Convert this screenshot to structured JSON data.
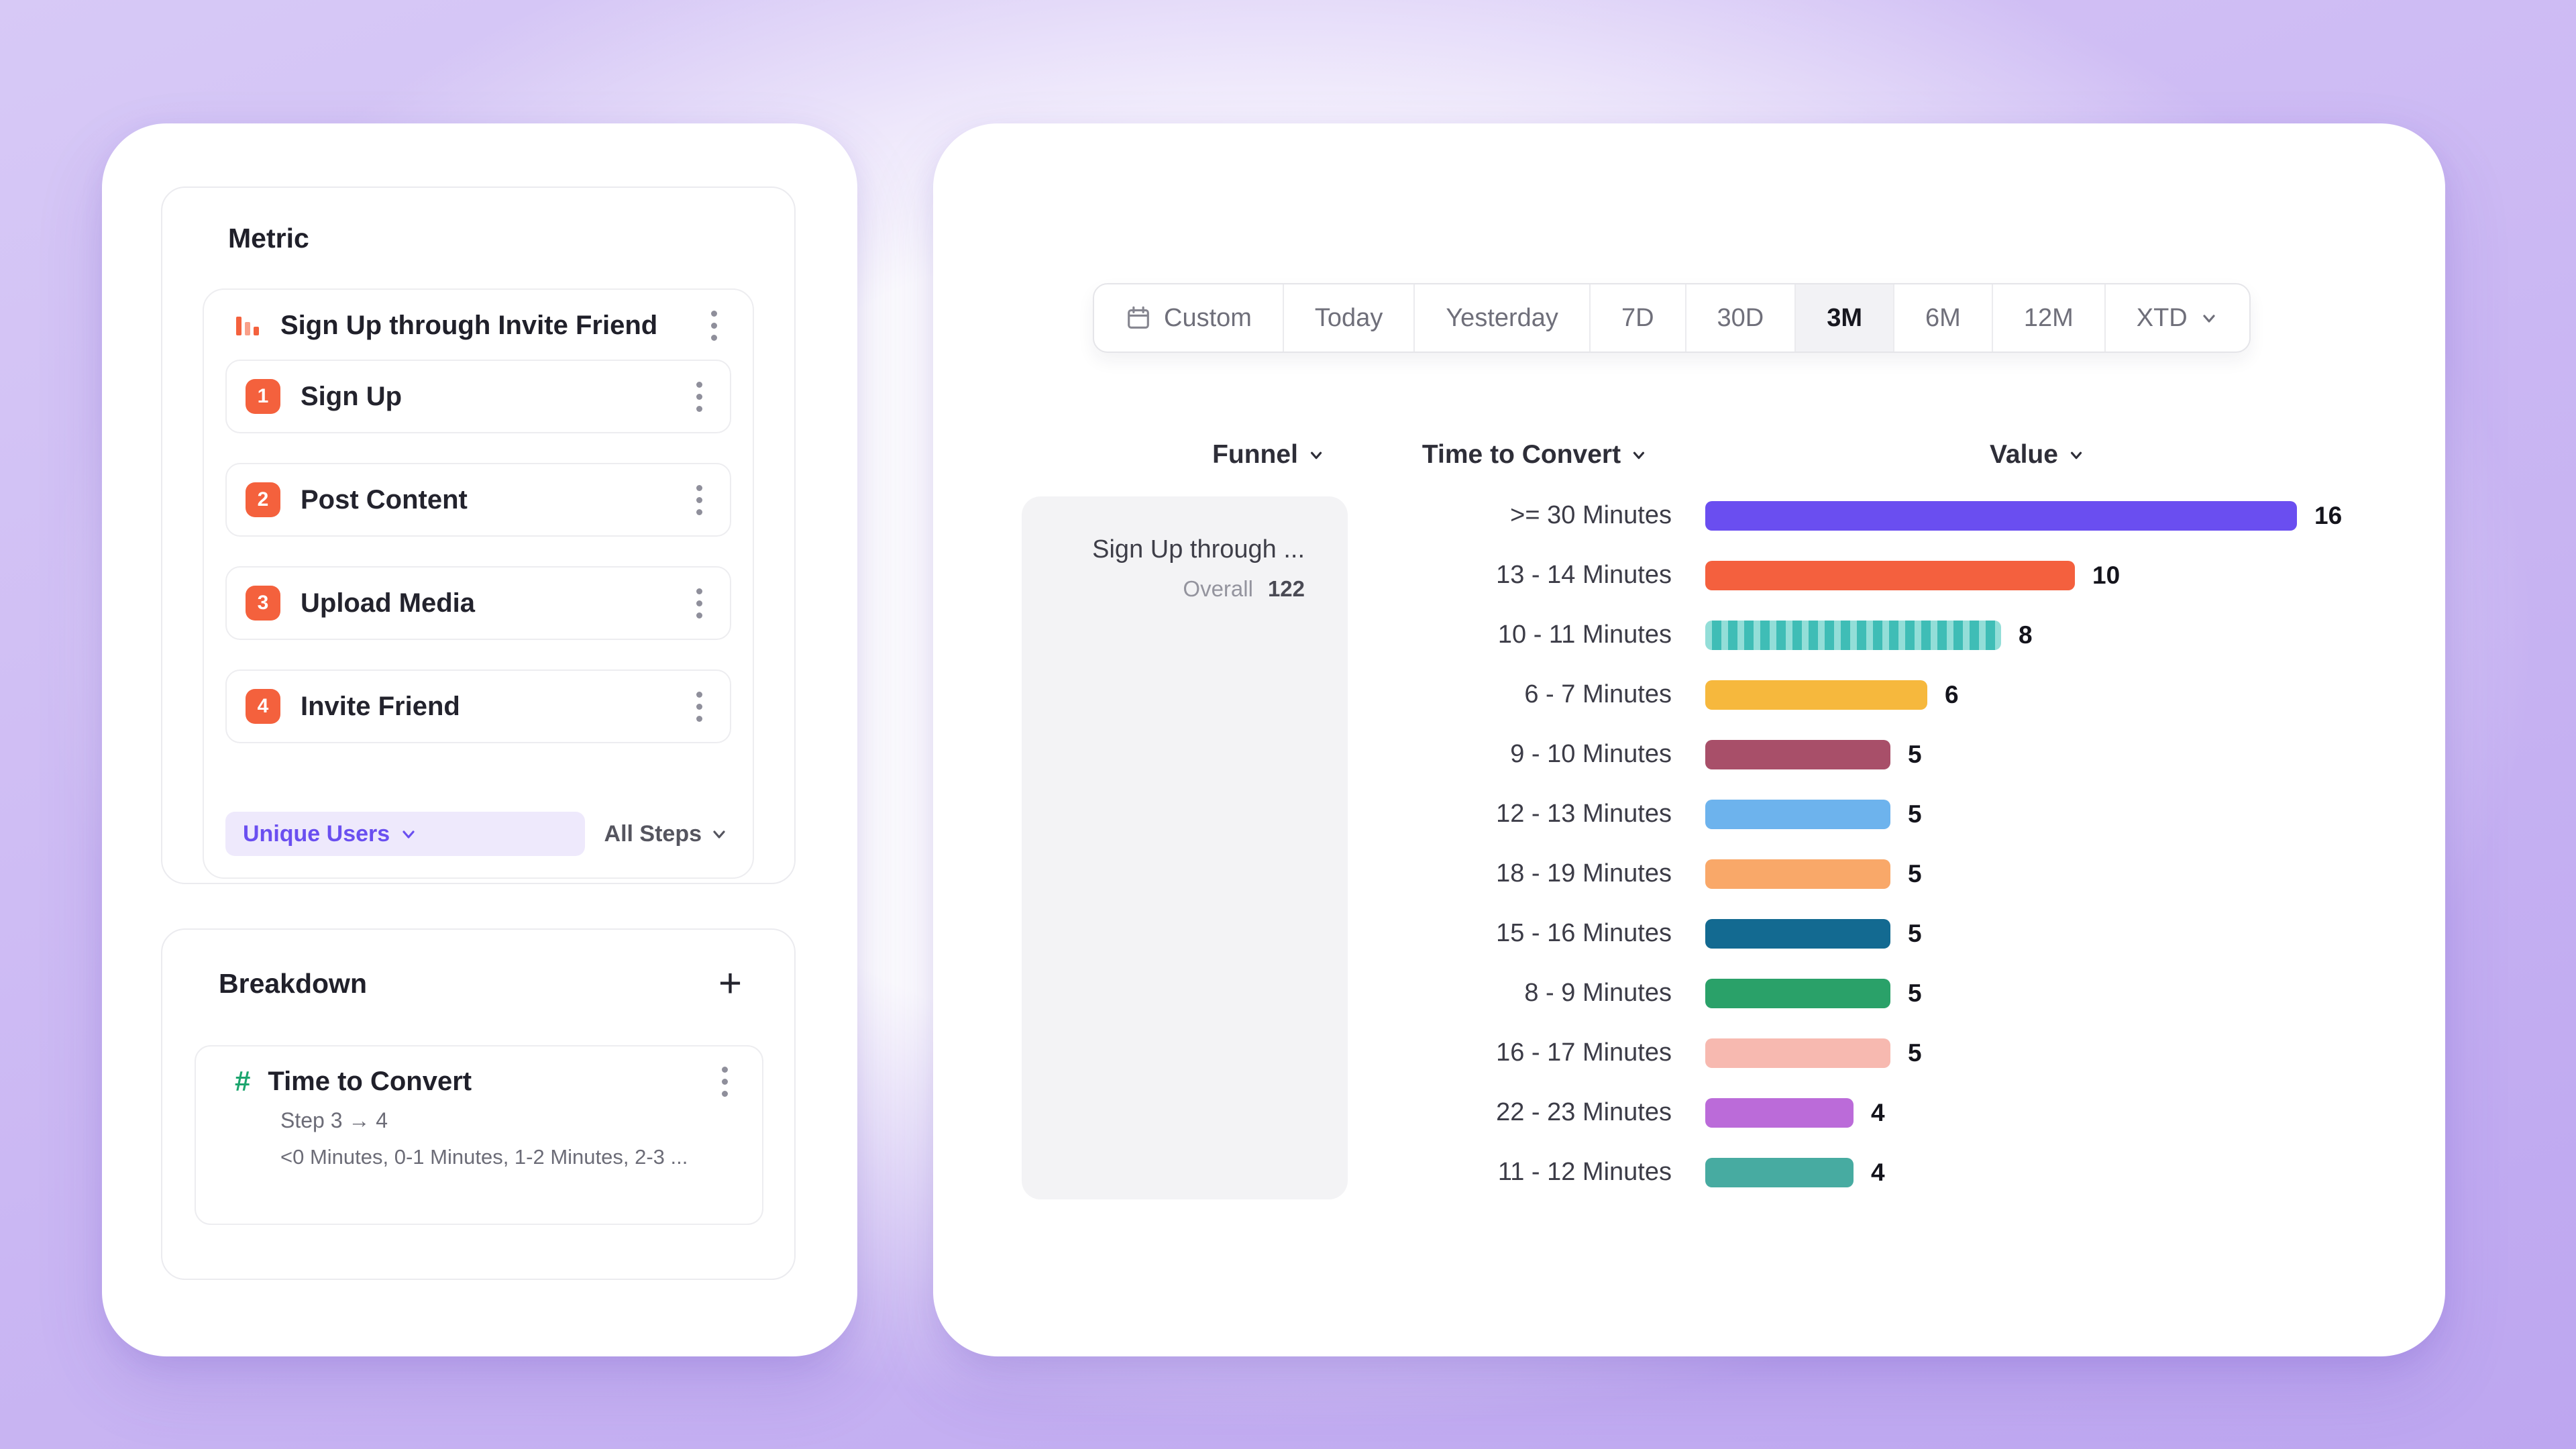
{
  "left_panel": {
    "metric_section": {
      "title": "Metric",
      "funnel_name": "Sign Up through Invite Friend",
      "steps": [
        {
          "number": "1",
          "label": "Sign Up"
        },
        {
          "number": "2",
          "label": "Post Content"
        },
        {
          "number": "3",
          "label": "Upload Media"
        },
        {
          "number": "4",
          "label": "Invite Friend"
        }
      ],
      "counting_dropdown": "Unique Users",
      "steps_dropdown": "All Steps"
    },
    "breakdown_section": {
      "title": "Breakdown",
      "add_icon": "+",
      "property_icon": "#",
      "property_name": "Time to Convert",
      "step_range": "Step 3 → 4",
      "buckets_preview": "<0 Minutes, 0-1 Minutes, 1-2 Minutes, 2-3 ..."
    }
  },
  "right_panel": {
    "date_selector": {
      "selected": "3M",
      "options": [
        {
          "label": "Custom",
          "icon": "calendar-icon",
          "selected": false
        },
        {
          "label": "Today",
          "selected": false
        },
        {
          "label": "Yesterday",
          "selected": false
        },
        {
          "label": "7D",
          "selected": false
        },
        {
          "label": "30D",
          "selected": false
        },
        {
          "label": "3M",
          "selected": true
        },
        {
          "label": "6M",
          "selected": false
        },
        {
          "label": "12M",
          "selected": false
        },
        {
          "label": "XTD",
          "icon_right": "chevron-down-icon",
          "selected": false
        }
      ]
    },
    "column_headers": [
      "Funnel",
      "Time to Convert",
      "Value"
    ],
    "funnel_summary": {
      "name": "Sign Up through ...",
      "overall_label": "Overall",
      "overall_value": "122"
    },
    "chart_data": {
      "type": "bar",
      "orientation": "horizontal",
      "value_axis_max": 16,
      "rows": [
        {
          "label": ">= 30 Minutes",
          "value": 16,
          "color": "#6a4ef0"
        },
        {
          "label": "13 - 14 Minutes",
          "value": 10,
          "color": "#f4603e"
        },
        {
          "label": "10 - 11 Minutes",
          "value": 8,
          "color": "#3fbdb6",
          "pattern": "vertical-stripes",
          "pattern_color": "#93ded8"
        },
        {
          "label": "6 - 7 Minutes",
          "value": 6,
          "color": "#f6b83d"
        },
        {
          "label": "9 - 10 Minutes",
          "value": 5,
          "color": "#a84f69"
        },
        {
          "label": "12 - 13 Minutes",
          "value": 5,
          "color": "#6db3ed"
        },
        {
          "label": "18 - 19 Minutes",
          "value": 5,
          "color": "#f9a869"
        },
        {
          "label": "15 - 16 Minutes",
          "value": 5,
          "color": "#136a91"
        },
        {
          "label": "8 - 9 Minutes",
          "value": 5,
          "color": "#2aa169"
        },
        {
          "label": "16 - 17 Minutes",
          "value": 5,
          "color": "#f7b9b0"
        },
        {
          "label": "22 - 23 Minutes",
          "value": 4,
          "color": "#bb6bd9"
        },
        {
          "label": "11 - 12 Minutes",
          "value": 4,
          "color": "#47aba1"
        }
      ]
    }
  },
  "colors": {
    "accent_purple": "#6a4ff0",
    "step_badge": "#f4613d",
    "breakdown_green": "#1ca56e",
    "selected_tab_bg": "#f2f2f5",
    "funnel_summary_bg": "#f3f3f5"
  }
}
